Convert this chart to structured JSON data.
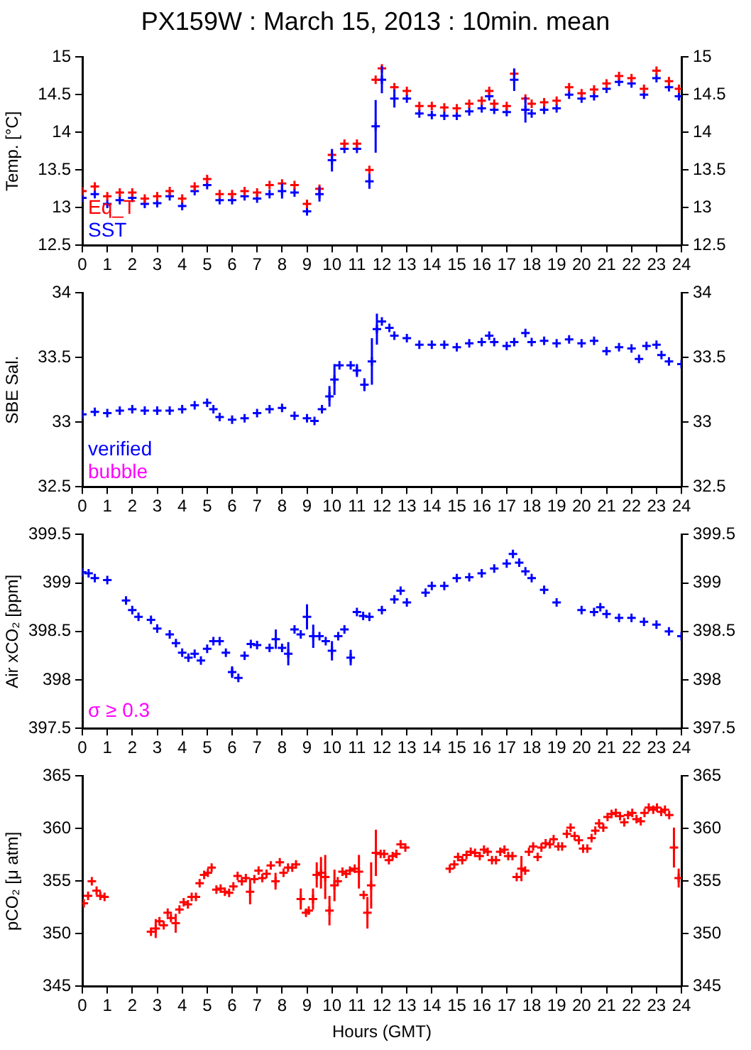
{
  "chart_data": [
    {
      "type": "scatter",
      "title": "PX159W : March 15, 2013 : 10min. mean",
      "ylabel": "Temp. [°C]",
      "legend": "bottom left",
      "grid": false,
      "x": [
        0,
        0.5,
        1,
        1.5,
        2,
        2.5,
        3,
        3.5,
        4,
        4.5,
        5,
        5.5,
        6,
        6.5,
        7,
        7.5,
        8,
        8.5,
        9,
        9.5,
        10,
        10.5,
        11,
        11.5,
        11.75,
        12,
        12.5,
        13,
        13.5,
        14,
        14.5,
        15,
        15.5,
        16,
        16.3,
        16.5,
        17,
        17.3,
        17.75,
        18,
        18.5,
        19,
        19.5,
        20,
        20.5,
        21,
        21.5,
        22,
        22.5,
        23,
        23.5,
        23.9
      ],
      "series": [
        {
          "name": "Eq_T",
          "color": "#ff0000",
          "marker": "cross",
          "values": [
            13.22,
            13.28,
            13.15,
            13.2,
            13.2,
            13.12,
            13.15,
            13.22,
            13.12,
            13.28,
            13.38,
            13.18,
            13.18,
            13.22,
            13.2,
            13.3,
            13.32,
            13.3,
            13.05,
            13.25,
            13.7,
            13.85,
            13.85,
            13.5,
            14.7,
            14.85,
            14.6,
            14.55,
            14.35,
            14.35,
            14.33,
            14.32,
            14.38,
            14.42,
            14.55,
            14.38,
            14.35,
            14.78,
            14.45,
            14.38,
            14.4,
            14.42,
            14.6,
            14.52,
            14.57,
            14.65,
            14.75,
            14.72,
            14.58,
            14.82,
            14.68,
            14.58
          ]
        },
        {
          "name": "SST",
          "color": "#0000ff",
          "marker": "cross",
          "values": [
            13.13,
            13.18,
            13.05,
            13.1,
            13.13,
            13.05,
            13.06,
            13.15,
            13.02,
            13.22,
            13.3,
            13.1,
            13.1,
            13.15,
            13.12,
            13.18,
            13.22,
            13.2,
            12.95,
            13.18,
            13.63,
            13.78,
            13.78,
            13.35,
            14.08,
            14.7,
            14.45,
            14.45,
            14.25,
            14.23,
            14.22,
            14.22,
            14.28,
            14.32,
            14.48,
            14.3,
            14.27,
            14.7,
            14.3,
            14.25,
            14.3,
            14.32,
            14.5,
            14.45,
            14.48,
            14.58,
            14.67,
            14.65,
            14.5,
            14.72,
            14.6,
            14.48
          ],
          "errors": [
            null,
            null,
            null,
            null,
            null,
            null,
            null,
            null,
            null,
            null,
            null,
            null,
            null,
            null,
            null,
            null,
            0.1,
            null,
            null,
            0.1,
            0.15,
            null,
            null,
            0.1,
            0.35,
            0.18,
            0.12,
            null,
            null,
            null,
            null,
            null,
            null,
            null,
            null,
            null,
            null,
            0.15,
            0.17,
            null,
            null,
            null,
            null,
            null,
            null,
            null,
            null,
            null,
            null,
            null,
            null,
            null
          ]
        }
      ],
      "xlim": [
        0,
        24
      ],
      "xticks": [
        0,
        1,
        2,
        3,
        4,
        5,
        6,
        7,
        8,
        9,
        10,
        11,
        12,
        13,
        14,
        15,
        16,
        17,
        18,
        19,
        20,
        21,
        22,
        23,
        24
      ],
      "ylim": [
        12.5,
        15
      ],
      "yticks": [
        12.5,
        13,
        13.5,
        14,
        14.5,
        15
      ],
      "y2lim": [
        12.5,
        15
      ],
      "y2ticks": [
        12.5,
        13,
        13.5,
        14,
        14.5,
        15
      ]
    },
    {
      "type": "scatter",
      "ylabel": "SBE Sal.",
      "legend": "bottom left",
      "grid": false,
      "x": [
        0,
        0.5,
        1,
        1.5,
        2,
        2.5,
        3,
        3.5,
        4,
        4.5,
        5,
        5.25,
        5.5,
        6,
        6.5,
        7,
        7.5,
        8,
        8.5,
        9,
        9.3,
        9.6,
        9.9,
        10.1,
        10.3,
        10.75,
        11,
        11.3,
        11.6,
        11.8,
        12,
        12.3,
        12.5,
        13,
        13.5,
        14,
        14.5,
        15,
        15.5,
        16,
        16.3,
        16.5,
        17,
        17.3,
        17.75,
        18,
        18.5,
        19,
        19.5,
        20,
        20.5,
        21,
        21.5,
        22,
        22.3,
        22.6,
        23,
        23.2,
        23.5,
        24
      ],
      "series": [
        {
          "name": "verified",
          "color": "#0000ff",
          "marker": "cross",
          "values": [
            33.06,
            33.08,
            33.07,
            33.09,
            33.1,
            33.09,
            33.09,
            33.09,
            33.1,
            33.13,
            33.15,
            33.1,
            33.04,
            33.02,
            33.03,
            33.07,
            33.1,
            33.11,
            33.05,
            33.03,
            33.01,
            33.1,
            33.2,
            33.33,
            33.44,
            33.44,
            33.4,
            33.29,
            33.47,
            33.72,
            33.78,
            33.73,
            33.67,
            33.65,
            33.6,
            33.6,
            33.6,
            33.58,
            33.61,
            33.62,
            33.67,
            33.62,
            33.59,
            33.62,
            33.69,
            33.62,
            33.63,
            33.61,
            33.64,
            33.61,
            33.63,
            33.55,
            33.58,
            33.57,
            33.49,
            33.59,
            33.6,
            33.52,
            33.47,
            33.45
          ],
          "errors": [
            null,
            null,
            null,
            null,
            null,
            null,
            null,
            null,
            null,
            null,
            null,
            null,
            null,
            null,
            null,
            null,
            null,
            null,
            null,
            null,
            null,
            null,
            0.08,
            0.12,
            null,
            null,
            0.05,
            0.05,
            0.18,
            0.12,
            null,
            null,
            null,
            null,
            null,
            null,
            null,
            null,
            null,
            null,
            null,
            null,
            null,
            null,
            null,
            null,
            null,
            null,
            null,
            null,
            null,
            null,
            null,
            null,
            null,
            null,
            null,
            null,
            null,
            null
          ]
        },
        {
          "name": "bubble",
          "color": "#ff00ff",
          "marker": "cross",
          "values": [
            null,
            null,
            null,
            null,
            null,
            null,
            null,
            null,
            null,
            null,
            null,
            null,
            null,
            null,
            null,
            null,
            null,
            null,
            null,
            null,
            null,
            null,
            null,
            null,
            null,
            null,
            null,
            null,
            null,
            null,
            null,
            null,
            null,
            null,
            null,
            null,
            null,
            null,
            null,
            null,
            null,
            null,
            null,
            null,
            null,
            null,
            null,
            null,
            null,
            null,
            null,
            null,
            null,
            null,
            null,
            null,
            null,
            null,
            null,
            null
          ]
        }
      ],
      "xlim": [
        0,
        24
      ],
      "xticks": [
        0,
        1,
        2,
        3,
        4,
        5,
        6,
        7,
        8,
        9,
        10,
        11,
        12,
        13,
        14,
        15,
        16,
        17,
        18,
        19,
        20,
        21,
        22,
        23,
        24
      ],
      "ylim": [
        32.5,
        34
      ],
      "yticks": [
        32.5,
        33,
        33.5,
        34
      ],
      "y2lim": [
        32.5,
        34
      ],
      "y2ticks": [
        32.5,
        33,
        33.5,
        34
      ]
    },
    {
      "type": "scatter",
      "ylabel": "Air xCO₂ [ppm]",
      "annotations": [
        "σ ≥ 0.3"
      ],
      "grid": false,
      "x": [
        0,
        0.25,
        0.5,
        1,
        1.75,
        2,
        2.25,
        2.75,
        3,
        3.5,
        3.75,
        4,
        4.25,
        4.5,
        4.75,
        5,
        5.25,
        5.5,
        5.75,
        6,
        6.25,
        6.5,
        6.75,
        7,
        7.5,
        7.75,
        8,
        8.25,
        8.5,
        8.75,
        9,
        9.25,
        9.5,
        9.75,
        10,
        10.25,
        10.5,
        10.75,
        11,
        11.25,
        11.5,
        12,
        12.5,
        12.75,
        13,
        13.75,
        14,
        14.5,
        15,
        15.5,
        16,
        16.5,
        17,
        17.25,
        17.5,
        17.75,
        18,
        18.5,
        19,
        20,
        20.5,
        20.75,
        21,
        21.5,
        22,
        22.5,
        23,
        23.5,
        24
      ],
      "series": [
        {
          "color": "#0000ff",
          "marker": "cross",
          "values": [
            399.11,
            399.1,
            399.05,
            399.03,
            398.82,
            398.72,
            398.65,
            398.62,
            398.53,
            398.47,
            398.38,
            398.28,
            398.23,
            398.27,
            398.2,
            398.32,
            398.4,
            398.4,
            398.28,
            398.08,
            398.02,
            398.25,
            398.37,
            398.36,
            398.33,
            398.42,
            398.33,
            398.27,
            398.52,
            398.47,
            398.65,
            398.45,
            398.45,
            398.4,
            398.3,
            398.45,
            398.52,
            398.23,
            398.7,
            398.66,
            398.65,
            398.72,
            398.83,
            398.92,
            398.8,
            398.9,
            398.97,
            398.97,
            399.05,
            399.06,
            399.1,
            399.15,
            399.2,
            399.3,
            399.21,
            399.12,
            399.05,
            398.93,
            398.8,
            398.72,
            398.7,
            398.75,
            398.68,
            398.64,
            398.64,
            398.6,
            398.57,
            398.5,
            398.45
          ],
          "errors": [
            null,
            null,
            null,
            null,
            null,
            null,
            null,
            null,
            null,
            null,
            null,
            null,
            null,
            null,
            null,
            null,
            null,
            null,
            null,
            0.06,
            null,
            null,
            null,
            null,
            null,
            0.1,
            null,
            0.12,
            null,
            null,
            0.13,
            0.12,
            null,
            null,
            0.1,
            null,
            null,
            0.08,
            null,
            null,
            null,
            null,
            null,
            null,
            null,
            null,
            null,
            null,
            null,
            null,
            null,
            null,
            null,
            null,
            null,
            null,
            null,
            null,
            null,
            null,
            null,
            null,
            null,
            null,
            null,
            null,
            null,
            null,
            null
          ]
        }
      ],
      "xlim": [
        0,
        24
      ],
      "xticks": [
        0,
        1,
        2,
        3,
        4,
        5,
        6,
        7,
        8,
        9,
        10,
        11,
        12,
        13,
        14,
        15,
        16,
        17,
        18,
        19,
        20,
        21,
        22,
        23,
        24
      ],
      "ylim": [
        397.5,
        399.5
      ],
      "yticks": [
        397.5,
        398,
        398.5,
        399,
        399.5
      ],
      "y2lim": [
        397.5,
        399.5
      ],
      "y2ticks": [
        397.5,
        398,
        398.5,
        399,
        399.5
      ]
    },
    {
      "type": "scatter",
      "ylabel": "pCO₂ [μ atm]",
      "xlabel": "Hours (GMT)",
      "grid": false,
      "x": [
        0.06,
        0.23,
        0.38,
        0.57,
        0.72,
        0.89,
        2.75,
        2.94,
        3.09,
        3.26,
        3.42,
        3.55,
        3.74,
        3.89,
        4.06,
        4.23,
        4.38,
        4.55,
        4.7,
        4.88,
        5.03,
        5.18,
        5.37,
        5.54,
        5.71,
        5.88,
        6.05,
        6.22,
        6.39,
        6.55,
        6.72,
        6.89,
        7.06,
        7.21,
        7.38,
        7.55,
        7.74,
        7.91,
        8.06,
        8.24,
        8.41,
        8.56,
        8.75,
        8.96,
        9.07,
        9.24,
        9.39,
        9.56,
        9.73,
        9.9,
        10.1,
        10.23,
        10.42,
        10.57,
        10.72,
        10.91,
        11.08,
        11.27,
        11.42,
        11.57,
        11.76,
        11.95,
        12.09,
        12.28,
        12.43,
        12.58,
        12.75,
        12.94,
        14.72,
        14.9,
        15.05,
        15.22,
        15.39,
        15.56,
        15.73,
        15.92,
        16.09,
        16.24,
        16.41,
        16.57,
        16.74,
        16.91,
        17.06,
        17.23,
        17.4,
        17.59,
        17.74,
        17.89,
        18.06,
        18.24,
        18.39,
        18.56,
        18.73,
        18.88,
        19.07,
        19.22,
        19.41,
        19.56,
        19.72,
        19.89,
        20.06,
        20.23,
        20.4,
        20.55,
        20.7,
        20.87,
        21.04,
        21.2,
        21.37,
        21.54,
        21.71,
        21.86,
        22.03,
        22.2,
        22.37,
        22.52,
        22.69,
        22.87,
        23.02,
        23.19,
        23.34,
        23.51,
        23.7,
        23.89
      ],
      "series": [
        {
          "color": "#ff0000",
          "marker": "cross",
          "values": [
            352.9,
            353.6,
            355,
            354.1,
            353.6,
            353.5,
            350.2,
            350.5,
            351.2,
            350.8,
            352,
            351.5,
            351,
            352.3,
            353,
            352.8,
            353.5,
            353.5,
            354.8,
            355.6,
            355.8,
            356.3,
            354.2,
            354.3,
            354,
            353.9,
            354.5,
            355.5,
            355,
            355.3,
            354,
            355.2,
            356,
            355.3,
            355.7,
            356.5,
            355,
            356.8,
            355.8,
            356.3,
            356.3,
            356.6,
            353.3,
            352,
            352.2,
            353.3,
            355.6,
            355.8,
            355.4,
            352.2,
            354.6,
            355,
            355.9,
            355.7,
            356,
            356.2,
            355.9,
            353.7,
            352,
            354.6,
            357.7,
            357.6,
            357.6,
            357,
            357.4,
            357.6,
            358.5,
            358.2,
            356.2,
            356.6,
            357.3,
            357,
            357.5,
            357.8,
            357.7,
            357.4,
            358,
            357.8,
            357,
            357,
            357.8,
            358,
            357.4,
            357.4,
            355.4,
            356.2,
            356,
            357.8,
            358.3,
            357.3,
            358.2,
            358.6,
            358.5,
            359,
            358.3,
            358.3,
            359.5,
            360.1,
            359.3,
            358.9,
            358.1,
            358.1,
            359.1,
            359.8,
            360.5,
            360.1,
            361.1,
            361.4,
            361.5,
            361.2,
            360.6,
            361.3,
            361.5,
            360.9,
            360.7,
            361.5,
            362,
            361.8,
            362,
            361.6,
            361.8,
            361.3,
            358.2,
            355.3
          ],
          "errors": [
            null,
            null,
            null,
            null,
            null,
            null,
            null,
            0.9,
            null,
            null,
            null,
            null,
            0.9,
            null,
            null,
            null,
            null,
            null,
            null,
            null,
            null,
            null,
            null,
            null,
            null,
            null,
            null,
            null,
            null,
            null,
            1.2,
            null,
            null,
            null,
            null,
            null,
            0.8,
            null,
            null,
            null,
            null,
            null,
            1,
            null,
            null,
            1,
            1.2,
            1.5,
            2.1,
            1.4,
            1.5,
            null,
            null,
            null,
            null,
            null,
            1.6,
            null,
            1.5,
            2.2,
            2.2,
            null,
            null,
            null,
            null,
            null,
            null,
            null,
            null,
            null,
            null,
            null,
            null,
            null,
            null,
            null,
            null,
            null,
            null,
            null,
            null,
            null,
            null,
            null,
            null,
            1.2,
            null,
            null,
            null,
            null,
            null,
            null,
            null,
            null,
            null,
            null,
            null,
            null,
            null,
            null,
            null,
            null,
            null,
            null,
            null,
            null,
            null,
            null,
            null,
            null,
            null,
            null,
            null,
            null,
            null,
            null,
            null,
            null,
            null,
            null,
            null,
            null,
            1.9,
            0.9
          ]
        }
      ],
      "xlim": [
        0,
        24
      ],
      "xticks": [
        0,
        1,
        2,
        3,
        4,
        5,
        6,
        7,
        8,
        9,
        10,
        11,
        12,
        13,
        14,
        15,
        16,
        17,
        18,
        19,
        20,
        21,
        22,
        23,
        24
      ],
      "ylim": [
        345,
        365
      ],
      "yticks": [
        345,
        350,
        355,
        360,
        365
      ],
      "y2lim": [
        345,
        365
      ],
      "y2ticks": [
        345,
        350,
        355,
        360,
        365
      ]
    }
  ]
}
